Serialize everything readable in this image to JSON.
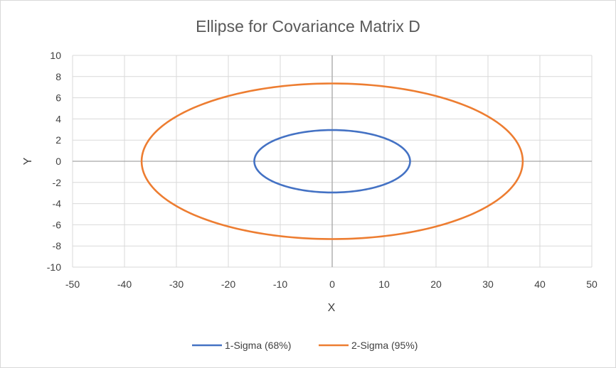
{
  "chart_data": {
    "type": "scatter",
    "title": "Ellipse for Covariance Matrix D",
    "xlabel": "X",
    "ylabel": "Y",
    "xlim": [
      -50,
      50
    ],
    "ylim": [
      -10,
      10
    ],
    "x_ticks": [
      -50,
      -40,
      -30,
      -20,
      -10,
      0,
      10,
      20,
      30,
      40,
      50
    ],
    "y_ticks": [
      -10,
      -8,
      -6,
      -4,
      -2,
      0,
      2,
      4,
      6,
      8,
      10
    ],
    "grid": true,
    "legend_position": "bottom",
    "series": [
      {
        "name": "1-Sigma (68%)",
        "color": "#4472c4",
        "center": [
          0,
          0
        ],
        "semi_axis_x": 15,
        "semi_axis_y": 2.95
      },
      {
        "name": "2-Sigma (95%)",
        "color": "#ed7d31",
        "center": [
          0,
          0
        ],
        "semi_axis_x": 36.7,
        "semi_axis_y": 7.35
      }
    ]
  }
}
